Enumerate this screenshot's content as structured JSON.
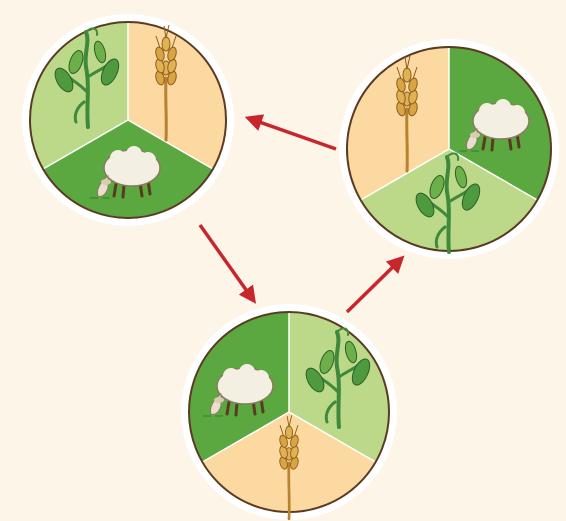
{
  "colors": {
    "background": "#fcf5e8",
    "pasture_dark": "#5aa83f",
    "pasture_light": "#bcd98a",
    "wheat_field": "#fbd9a0",
    "arrow": "#c7272c",
    "outline": "#5a3b22",
    "sheep": "#f3efe2",
    "plant": "#3f8a3a",
    "wheat": "#d9a441"
  },
  "diagram": {
    "type": "crop-rotation-cycle",
    "stages": [
      {
        "id": "stage-1",
        "sectors": [
          "legume-icon",
          "wheat-icon",
          "sheep-icon"
        ]
      },
      {
        "id": "stage-2",
        "sectors": [
          "wheat-icon",
          "sheep-icon",
          "legume-icon"
        ]
      },
      {
        "id": "stage-3",
        "sectors": [
          "legume-icon",
          "wheat-icon",
          "sheep-icon"
        ]
      }
    ],
    "arrows": [
      {
        "from": "stage-2",
        "to": "stage-1"
      },
      {
        "from": "stage-1",
        "to": "stage-3"
      },
      {
        "from": "stage-3",
        "to": "stage-2"
      }
    ]
  }
}
